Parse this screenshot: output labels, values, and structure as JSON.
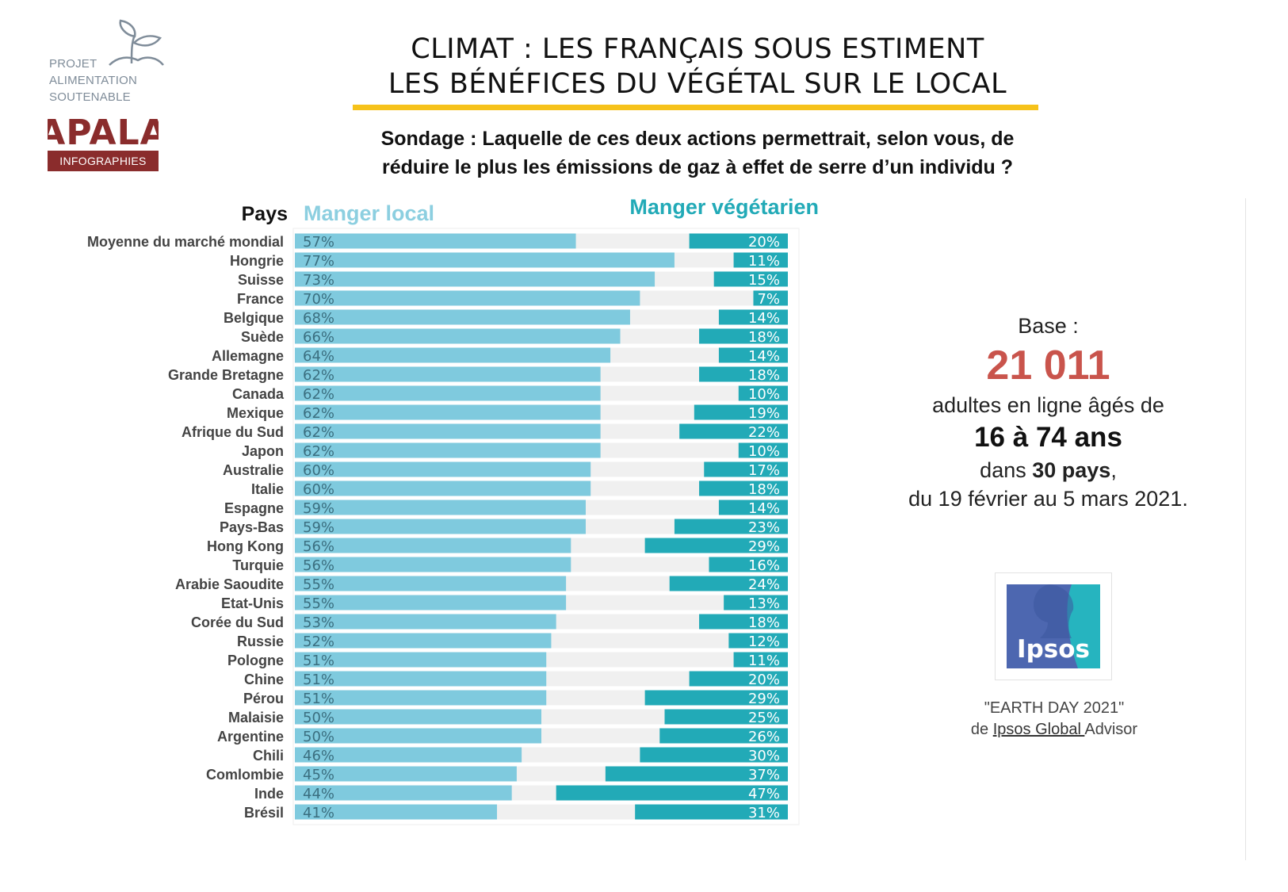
{
  "logo": {
    "line1": "PROJET",
    "line2": "ALIMENTATION",
    "line3": "SOUTENABLE",
    "brand": "APALA",
    "tag": "INFOGRAPHIES",
    "brand_color": "#8a2c2c"
  },
  "title": {
    "line1": "CLIMAT : LES FRANÇAIS SOUS ESTIMENT",
    "line2": "LES BÉNÉFICES DU VÉGÉTAL SUR LE LOCAL",
    "underline_color": "#f6c21a"
  },
  "question": {
    "line1": "Sondage : Laquelle de ces deux actions permettrait, selon vous, de",
    "line2": "réduire le plus les émissions de gaz à effet de serre d’un individu ?"
  },
  "chart_data": {
    "type": "bar",
    "orientation": "horizontal",
    "category_header": "Pays",
    "categories": [
      "Moyenne du marché mondial",
      "Hongrie",
      "Suisse",
      "France",
      "Belgique",
      "Suède",
      "Allemagne",
      "Grande Bretagne",
      "Canada",
      "Mexique",
      "Afrique du Sud",
      "Japon",
      "Australie",
      "Italie",
      "Espagne",
      "Pays-Bas",
      "Hong Kong",
      "Turquie",
      "Arabie Saoudite",
      "Etat-Unis",
      "Corée du Sud",
      "Russie",
      "Pologne",
      "Chine",
      "Pérou",
      "Malaisie",
      "Argentine",
      "Chili",
      "Comlombie",
      "Inde",
      "Brésil"
    ],
    "series": [
      {
        "name": "Manger local",
        "color": "#7fcade",
        "anchor": "left",
        "values": [
          57,
          77,
          73,
          70,
          68,
          66,
          64,
          62,
          62,
          62,
          62,
          62,
          60,
          60,
          59,
          59,
          56,
          56,
          55,
          55,
          53,
          52,
          51,
          51,
          51,
          50,
          50,
          46,
          45,
          44,
          41
        ]
      },
      {
        "name": "Manger végétarien",
        "color": "#22aab7",
        "anchor": "right",
        "values": [
          20,
          11,
          15,
          7,
          14,
          18,
          14,
          18,
          10,
          19,
          22,
          10,
          17,
          18,
          14,
          23,
          29,
          16,
          24,
          13,
          18,
          12,
          11,
          20,
          29,
          25,
          26,
          30,
          37,
          47,
          31
        ]
      }
    ],
    "value_suffix": "%",
    "xlim": [
      0,
      100
    ],
    "background_color": "#f0f0f0"
  },
  "info": {
    "base_label": "Base :",
    "base_count": "21 011",
    "base_desc": "adultes en ligne âgés de",
    "ages": "16 à 74 ans",
    "countries_prefix": "dans ",
    "countries_bold": "30 pays",
    "countries_suffix": ",",
    "dates": "du 19 février au 5 mars 2021.",
    "accent_color": "#c9544c"
  },
  "ipsos": {
    "logo_text": "Ipsos",
    "logo_color_blue": "#4d67b0",
    "logo_color_teal": "#26b4bf"
  },
  "source": {
    "title": "\"EARTH DAY 2021\"",
    "prefix": "de ",
    "org": "Ipsos Global ",
    "suffix": "Advisor"
  }
}
